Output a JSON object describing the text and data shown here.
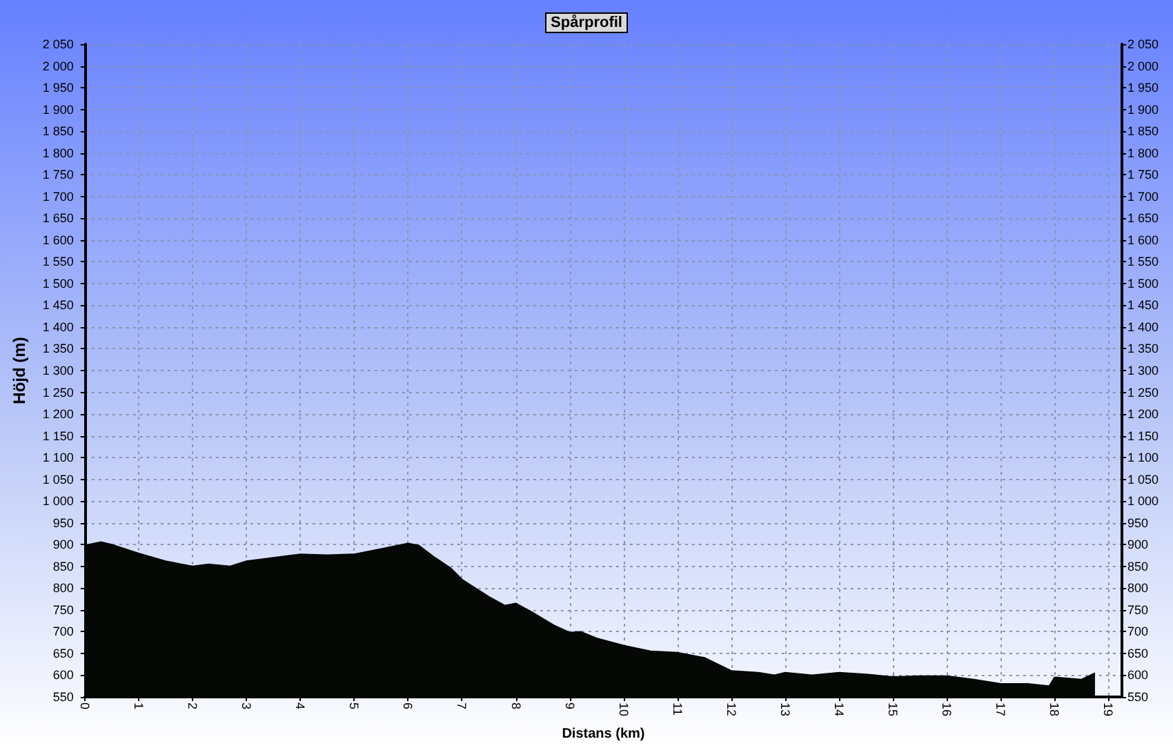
{
  "chart_data": {
    "type": "area",
    "title": "Spårprofil",
    "xlabel": "Distans (km)",
    "ylabel": "Höjd (m)",
    "x": [
      0,
      0.3,
      0.5,
      1,
      1.5,
      2,
      2.3,
      2.7,
      3,
      3.5,
      4,
      4.5,
      5,
      5.5,
      6,
      6.2,
      6.5,
      6.8,
      7,
      7.5,
      7.8,
      8,
      8.3,
      8.7,
      9,
      9.2,
      9.5,
      10,
      10.5,
      11,
      11.5,
      12,
      12.5,
      12.8,
      13,
      13.5,
      14,
      14.5,
      15,
      15.5,
      16,
      16.5,
      17,
      17.5,
      17.9,
      18,
      18.5,
      18.75
    ],
    "series": [
      {
        "color": "#050805",
        "values": [
          898,
          906,
          900,
          880,
          862,
          850,
          855,
          850,
          862,
          870,
          878,
          876,
          878,
          890,
          903,
          898,
          870,
          845,
          820,
          780,
          760,
          765,
          745,
          715,
          698,
          700,
          685,
          668,
          655,
          652,
          640,
          610,
          606,
          600,
          606,
          600,
          606,
          602,
          596,
          598,
          598,
          590,
          580,
          580,
          575,
          595,
          590,
          605
        ]
      }
    ],
    "xlim": [
      0,
      19.25
    ],
    "xticks": [
      0,
      1,
      2,
      3,
      4,
      5,
      6,
      7,
      8,
      9,
      10,
      11,
      12,
      13,
      14,
      15,
      16,
      17,
      18,
      19
    ],
    "ylim": [
      550,
      2050
    ],
    "yticks": [
      550,
      600,
      650,
      700,
      750,
      800,
      850,
      900,
      950,
      {
        "value": 1000,
        "label": "1 000"
      },
      {
        "value": 1050,
        "label": "1 050"
      },
      {
        "value": 1100,
        "label": "1 100"
      },
      {
        "value": 1150,
        "label": "1 150"
      },
      {
        "value": 1200,
        "label": "1 200"
      },
      {
        "value": 1250,
        "label": "1 250"
      },
      {
        "value": 1300,
        "label": "1 300"
      },
      {
        "value": 1350,
        "label": "1 350"
      },
      {
        "value": 1400,
        "label": "1 400"
      },
      {
        "value": 1450,
        "label": "1 450"
      },
      {
        "value": 1500,
        "label": "1 500"
      },
      {
        "value": 1550,
        "label": "1 550"
      },
      {
        "value": 1600,
        "label": "1 600"
      },
      {
        "value": 1650,
        "label": "1 650"
      },
      {
        "value": 1700,
        "label": "1 700"
      },
      {
        "value": 1750,
        "label": "1 750"
      },
      {
        "value": 1800,
        "label": "1 800"
      },
      {
        "value": 1850,
        "label": "1 850"
      },
      {
        "value": 1900,
        "label": "1 900"
      },
      {
        "value": 1950,
        "label": "1 950"
      },
      {
        "value": 2000,
        "label": "2 000"
      },
      {
        "value": 2050,
        "label": "2 050"
      }
    ],
    "y2lim": [
      550,
      2050
    ],
    "y2ticks": [
      550,
      600,
      650,
      700,
      750,
      800,
      850,
      900,
      950,
      {
        "value": 1000,
        "label": "1 000"
      },
      {
        "value": 1050,
        "label": "1 050"
      },
      {
        "value": 1100,
        "label": "1 100"
      },
      {
        "value": 1150,
        "label": "1 150"
      },
      {
        "value": 1200,
        "label": "1 200"
      },
      {
        "value": 1250,
        "label": "1 250"
      },
      {
        "value": 1300,
        "label": "1 300"
      },
      {
        "value": 1350,
        "label": "1 350"
      },
      {
        "value": 1400,
        "label": "1 400"
      },
      {
        "value": 1450,
        "label": "1 450"
      },
      {
        "value": 1500,
        "label": "1 500"
      },
      {
        "value": 1550,
        "label": "1 550"
      },
      {
        "value": 1600,
        "label": "1 600"
      },
      {
        "value": 1650,
        "label": "1 650"
      },
      {
        "value": 1700,
        "label": "1 700"
      },
      {
        "value": 1750,
        "label": "1 750"
      },
      {
        "value": 1800,
        "label": "1 800"
      },
      {
        "value": 1850,
        "label": "1 850"
      },
      {
        "value": 1900,
        "label": "1 900"
      },
      {
        "value": 1950,
        "label": "1 950"
      },
      {
        "value": 2000,
        "label": "2 000"
      },
      {
        "value": 2050,
        "label": "2 050"
      }
    ],
    "grid": true,
    "marker": "none",
    "line_style": "solid"
  }
}
